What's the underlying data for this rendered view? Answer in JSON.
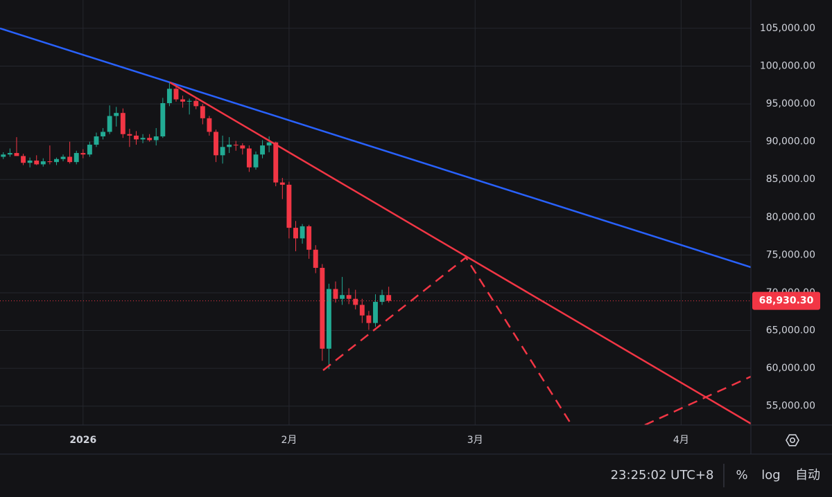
{
  "chart_data": {
    "type": "candlestick",
    "categories": [
      null,
      null,
      null,
      null,
      null,
      null,
      null,
      null,
      null,
      null,
      null,
      null,
      "2026",
      null,
      null,
      null,
      null,
      null,
      null,
      null,
      null,
      null,
      null,
      null,
      null,
      null,
      null,
      null,
      null,
      null,
      null,
      null,
      null,
      null,
      null,
      null,
      null,
      null,
      null,
      null,
      null,
      null,
      null,
      "2月",
      null,
      null,
      null,
      null,
      null,
      null,
      null,
      null,
      null,
      null,
      null,
      null,
      null,
      null,
      null,
      null,
      null,
      null,
      null,
      null,
      null,
      null,
      null,
      null,
      null,
      null,
      null,
      "3月",
      null,
      null,
      null,
      null,
      null,
      null,
      null,
      null,
      null,
      null,
      null,
      null,
      null,
      null,
      null,
      null,
      null,
      null,
      null,
      null,
      null,
      null,
      null,
      null,
      null,
      null,
      null,
      null,
      null,
      null,
      "4月",
      null,
      null,
      null,
      null,
      null,
      null,
      null,
      null,
      null,
      null
    ],
    "open": [
      88000,
      88300,
      88500,
      88100,
      87200,
      87500,
      87000,
      87400,
      87300,
      87700,
      88000,
      87300,
      88500,
      88300,
      89600,
      90700,
      91300,
      93400,
      93800,
      91000,
      90800,
      90300,
      90500,
      90200,
      90700,
      95100,
      97000,
      95600,
      95300,
      95400,
      94700,
      93100,
      91300,
      88200,
      89300,
      89600,
      89500,
      89100,
      86600,
      88300,
      89500,
      89900,
      84600,
      84300,
      78600,
      77200,
      78800,
      75700,
      73300,
      62600,
      70500,
      69200,
      69700,
      69200,
      68400,
      67000,
      66000,
      68800,
      69700,
      null,
      null,
      null,
      null,
      null,
      null,
      null,
      null,
      null,
      null,
      null,
      null,
      null,
      null,
      null,
      null,
      null,
      null,
      null,
      null,
      null,
      null,
      null,
      null,
      null,
      null,
      null,
      null,
      null,
      null,
      null,
      null,
      null,
      null,
      null,
      null,
      null,
      null,
      null,
      null,
      null,
      null,
      null,
      null,
      null,
      null,
      null,
      null,
      null,
      null,
      null,
      null,
      null,
      null
    ],
    "high": [
      88600,
      89100,
      90600,
      88400,
      87900,
      88200,
      87800,
      89500,
      87900,
      88300,
      90000,
      88800,
      89000,
      90000,
      91200,
      91800,
      94800,
      94600,
      94400,
      91700,
      91400,
      91000,
      91000,
      91800,
      95800,
      97900,
      97600,
      96100,
      95700,
      95700,
      95000,
      93400,
      91600,
      90800,
      90600,
      90100,
      89800,
      89500,
      88700,
      90200,
      90700,
      90000,
      85200,
      84700,
      79500,
      79100,
      79000,
      76300,
      73800,
      71200,
      71500,
      72100,
      70600,
      70400,
      69200,
      67600,
      69800,
      70400,
      70800,
      null,
      null,
      null,
      null,
      null,
      null,
      null,
      null,
      null,
      null,
      null,
      null,
      null,
      null,
      null,
      null,
      null,
      null,
      null,
      null,
      null,
      null,
      null,
      null,
      null,
      null,
      null,
      null,
      null,
      null,
      null,
      null,
      null,
      null,
      null,
      null,
      null,
      null,
      null,
      null,
      null,
      null,
      null,
      null,
      null,
      null,
      null,
      null,
      null,
      null,
      null,
      null,
      null,
      null
    ],
    "low": [
      87700,
      88000,
      88200,
      86900,
      86600,
      86900,
      86700,
      87000,
      86900,
      87400,
      87100,
      87000,
      87800,
      88000,
      89300,
      90300,
      91000,
      92000,
      90500,
      89300,
      89600,
      89800,
      90000,
      89500,
      90500,
      94700,
      95300,
      94500,
      93600,
      94300,
      92300,
      90800,
      87300,
      87100,
      88500,
      88800,
      88300,
      86000,
      86300,
      87800,
      88600,
      84100,
      82400,
      77200,
      75500,
      76500,
      74500,
      72600,
      61000,
      59900,
      68700,
      68400,
      68500,
      67800,
      66000,
      65100,
      65500,
      68400,
      68700,
      null,
      null,
      null,
      null,
      null,
      null,
      null,
      null,
      null,
      null,
      null,
      null,
      null,
      null,
      null,
      null,
      null,
      null,
      null,
      null,
      null,
      null,
      null,
      null,
      null,
      null,
      null,
      null,
      null,
      null,
      null,
      null,
      null,
      null,
      null,
      null,
      null,
      null,
      null,
      null,
      null,
      null,
      null,
      null,
      null,
      null,
      null,
      null,
      null,
      null,
      null,
      null,
      null,
      null
    ],
    "close": [
      88300,
      88500,
      88100,
      87200,
      87500,
      87000,
      87400,
      87300,
      87700,
      88000,
      87300,
      88500,
      88300,
      89600,
      90700,
      91300,
      93400,
      93800,
      91000,
      90800,
      90300,
      90500,
      90200,
      90700,
      95100,
      97000,
      95600,
      95300,
      95400,
      94700,
      93100,
      91300,
      88200,
      89300,
      89600,
      89500,
      89100,
      86600,
      88300,
      89500,
      89900,
      84600,
      84300,
      78600,
      77200,
      78800,
      75700,
      73300,
      62600,
      70500,
      69200,
      69700,
      69200,
      68400,
      67000,
      66000,
      68800,
      69700,
      68930.3,
      null,
      null,
      null,
      null,
      null,
      null,
      null,
      null,
      null,
      null,
      null,
      null,
      null,
      null,
      null,
      null,
      null,
      null,
      null,
      null,
      null,
      null,
      null,
      null,
      null,
      null,
      null,
      null,
      null,
      null,
      null,
      null,
      null,
      null,
      null,
      null,
      null,
      null,
      null,
      null,
      null,
      null,
      null,
      null,
      null,
      null,
      null,
      null,
      null,
      null,
      null,
      null,
      null,
      null
    ],
    "last_price_label": "68,930.30",
    "up_color": "#22ab94",
    "down_color": "#f23645",
    "ylim": [
      52500,
      108750
    ],
    "yticks": [
      {
        "value": 55000,
        "label": "55,000.00"
      },
      {
        "value": 60000,
        "label": "60,000.00"
      },
      {
        "value": 65000,
        "label": "65,000.00"
      },
      {
        "value": 70000,
        "label": "70,000.00"
      },
      {
        "value": 75000,
        "label": "75,000.00"
      },
      {
        "value": 80000,
        "label": "80,000.00"
      },
      {
        "value": 85000,
        "label": "85,000.00"
      },
      {
        "value": 90000,
        "label": "90,000.00"
      },
      {
        "value": 95000,
        "label": "95,000.00"
      },
      {
        "value": 100000,
        "label": "100,000.00"
      },
      {
        "value": 105000,
        "label": "105,000.00"
      }
    ],
    "grid": true
  },
  "toolbar": {
    "time": "23:25:02 UTC+8",
    "buttons": [
      "%",
      "log",
      "自动"
    ]
  }
}
